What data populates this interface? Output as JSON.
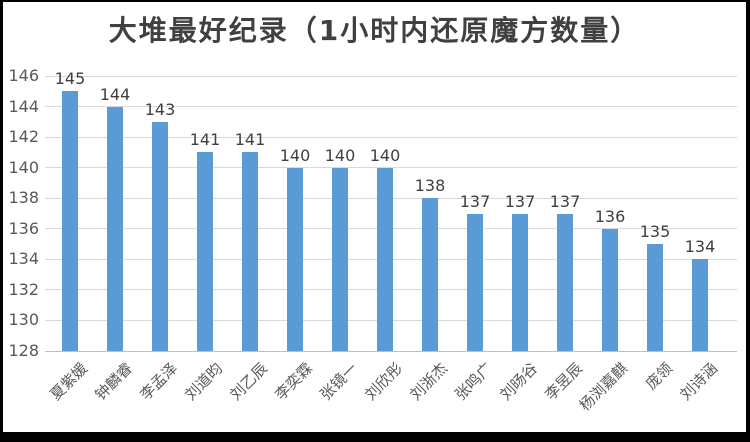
{
  "frame": {
    "background": "#ffffff",
    "border_color": "#000000"
  },
  "chart_data": {
    "type": "bar",
    "title": "大堆最好纪录（1小时内还原魔方数量）",
    "categories": [
      "夏紫媛",
      "钟麟睿",
      "李孟泽",
      "刘道昀",
      "刘乙辰",
      "李奕霖",
      "张镜一",
      "刘欣彤",
      "刘浙杰",
      "张鸣广",
      "刘旸谷",
      "李昱辰",
      "杨浏嘉麒",
      "庞领",
      "刘诗涵"
    ],
    "values": [
      145,
      144,
      143,
      141,
      141,
      140,
      140,
      140,
      138,
      137,
      137,
      137,
      136,
      135,
      134
    ],
    "xlabel": "",
    "ylabel": "",
    "ylim": [
      128,
      146
    ],
    "ytick_step": 2,
    "yticks": [
      128,
      130,
      132,
      134,
      136,
      138,
      140,
      142,
      144,
      146
    ],
    "grid": true,
    "legend": "none",
    "data_labels": true,
    "bar_color": "#5B9BD5",
    "gridline_color": "#D9D9D9",
    "axis_line_color": "#BFBFBF",
    "title_color": "#404040",
    "data_label_color": "#404040",
    "axis_text_color": "#595959"
  }
}
